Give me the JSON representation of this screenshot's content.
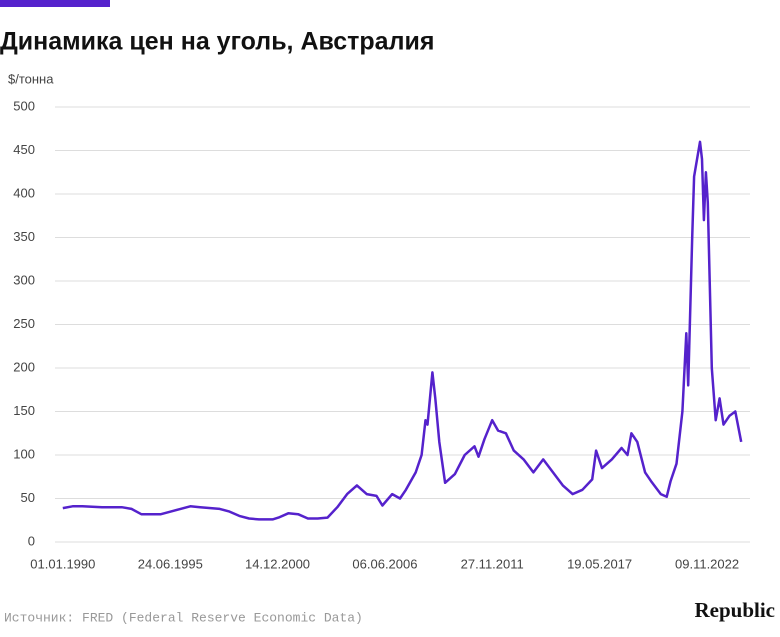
{
  "chart_data": {
    "type": "line",
    "title": "Динамика цен на уголь, Австралия",
    "ylabel": "$/тонна",
    "source": "Источник: FRED (Federal Reserve Economic Data)",
    "logo": "Republic",
    "color": "#5522cc",
    "grid": true,
    "x": [
      1990,
      1990.5,
      1991,
      1992,
      1993,
      1993.5,
      1994,
      1995,
      1995.5,
      1996,
      1996.5,
      1997,
      1998,
      1998.5,
      1999,
      1999.5,
      2000,
      2000.7,
      2001,
      2001.5,
      2002,
      2002.5,
      2003,
      2003.5,
      2004,
      2004.5,
      2005,
      2005.5,
      2006,
      2006.3,
      2006.8,
      2007.2,
      2007.5,
      2008,
      2008.3,
      2008.5,
      2008.6,
      2008.85,
      2009,
      2009.2,
      2009.5,
      2010,
      2010.5,
      2011,
      2011.2,
      2011.5,
      2011.9,
      2012.2,
      2012.6,
      2013,
      2013.5,
      2014,
      2014.5,
      2015,
      2015.5,
      2016,
      2016.5,
      2017,
      2017.2,
      2017.5,
      2018,
      2018.5,
      2018.8,
      2019,
      2019.3,
      2019.7,
      2020,
      2020.5,
      2020.8,
      2021,
      2021.3,
      2021.6,
      2021.8,
      2021.9,
      2022.1,
      2022.2,
      2022.5,
      2022.6,
      2022.7,
      2022.8,
      2022.9,
      2023.1,
      2023.3,
      2023.5,
      2023.7,
      2024,
      2024.3,
      2024.6
    ],
    "values": [
      39,
      41,
      41,
      40,
      40,
      38,
      32,
      32,
      35,
      38,
      41,
      40,
      38,
      35,
      30,
      27,
      26,
      26,
      28,
      33,
      32,
      27,
      27,
      28,
      40,
      55,
      65,
      55,
      53,
      42,
      55,
      50,
      60,
      80,
      100,
      140,
      135,
      195,
      165,
      115,
      68,
      78,
      100,
      110,
      98,
      118,
      140,
      128,
      125,
      105,
      95,
      80,
      95,
      80,
      65,
      55,
      60,
      72,
      105,
      85,
      95,
      108,
      100,
      125,
      115,
      80,
      70,
      55,
      52,
      70,
      90,
      150,
      240,
      180,
      350,
      420,
      460,
      440,
      370,
      425,
      390,
      200,
      140,
      165,
      135,
      145,
      150,
      115
    ],
    "xlim": [
      1989.6,
      2025.05
    ],
    "xticks": [
      {
        "value": 1990.0,
        "label": "01.01.1990"
      },
      {
        "value": 1995.48,
        "label": "24.06.1995"
      },
      {
        "value": 2000.95,
        "label": "14.12.2000"
      },
      {
        "value": 2006.43,
        "label": "06.06.2006"
      },
      {
        "value": 2011.9,
        "label": "27.11.2011"
      },
      {
        "value": 2017.38,
        "label": "19.05.2017"
      },
      {
        "value": 2022.86,
        "label": "09.11.2022"
      }
    ],
    "ylim": [
      0,
      500
    ],
    "yticks": [
      0,
      50,
      100,
      150,
      200,
      250,
      300,
      350,
      400,
      450,
      500
    ]
  }
}
